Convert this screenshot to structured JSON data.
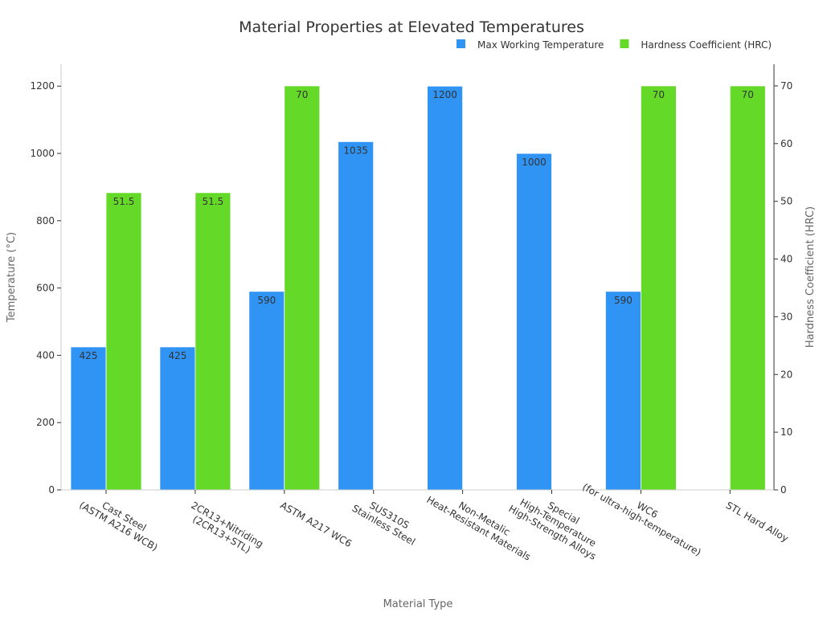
{
  "chart_data": {
    "type": "bar",
    "title": "Material Properties at Elevated Temperatures",
    "xlabel": "Material Type",
    "ylabel": "Temperature (°C)",
    "y2label": "Hardness Coefficient (HRC)",
    "ylim": [
      0,
      1265
    ],
    "y2lim": [
      0,
      73.75
    ],
    "yticks": [
      0,
      200,
      400,
      600,
      800,
      1000,
      1200
    ],
    "y2ticks": [
      0,
      10,
      20,
      30,
      40,
      50,
      60,
      70
    ],
    "grid": false,
    "legend_position": "top-right",
    "categories": [
      "Cast Steel\n(ASTM A216 WCB)",
      "2CR13+Nitriding\n(2CR13+STL)",
      "ASTM A217 WC6",
      "SUS310S\nStainless Steel",
      "Non-Metalic\nHeat-Resistant Materials",
      "Special\nHigh-Temperature\nHigh-Strength Alloys",
      "WC6\n(for ultra-high-temperature)",
      "STL Hard Alloy"
    ],
    "series": [
      {
        "name": "Max Working Temperature",
        "axis": "left",
        "color": "#3094f5",
        "values": [
          425,
          425,
          590,
          1035,
          1200,
          1000,
          590,
          null
        ],
        "labels": [
          "425",
          "425",
          "590",
          "1035",
          "1200",
          "1000",
          "590",
          ""
        ]
      },
      {
        "name": "Hardness Coefficient (HRC)",
        "axis": "right",
        "color": "#64d927",
        "values": [
          51.5,
          51.5,
          70,
          null,
          null,
          null,
          70,
          70
        ],
        "labels": [
          "51.5",
          "51.5",
          "70",
          "",
          "",
          "",
          "70",
          "70"
        ]
      }
    ]
  }
}
